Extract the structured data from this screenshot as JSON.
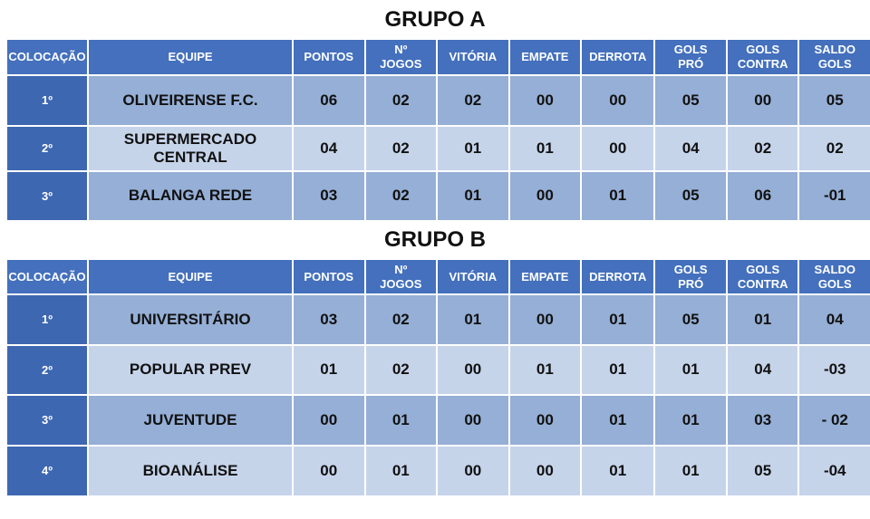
{
  "groups": [
    {
      "title": "GRUPO A",
      "header": [
        "COLOCAÇÃO",
        "EQUIPE",
        "PONTOS",
        "Nº JOGOS",
        "VITÓRIA",
        "EMPATE",
        "DERROTA",
        "GOLS PRÓ",
        "GOLS CONTRA",
        "SALDO GOLS"
      ],
      "rows": [
        [
          "1º",
          "OLIVEIRENSE F.C.",
          "06",
          "02",
          "02",
          "00",
          "00",
          "05",
          "00",
          "05"
        ],
        [
          "2º",
          "SUPERMERCADO CENTRAL",
          "04",
          "02",
          "01",
          "01",
          "00",
          "04",
          "02",
          "02"
        ],
        [
          "3º",
          "BALANGA REDE",
          "03",
          "02",
          "01",
          "00",
          "01",
          "05",
          "06",
          "-01"
        ]
      ]
    },
    {
      "title": "GRUPO B",
      "header": [
        "COLOCAÇÃO",
        "EQUIPE",
        "PONTOS",
        "Nº JOGOS",
        "VITÓRIA",
        "EMPATE",
        "DERROTA",
        "GOLS PRÓ",
        "GOLS CONTRA",
        "SALDO GOLS"
      ],
      "rows": [
        [
          "1º",
          "UNIVERSITÁRIO",
          "03",
          "02",
          "01",
          "00",
          "01",
          "05",
          "01",
          "04"
        ],
        [
          "2º",
          "POPULAR PREV",
          "01",
          "02",
          "00",
          "01",
          "01",
          "01",
          "04",
          "-03"
        ],
        [
          "3º",
          "JUVENTUDE",
          "00",
          "01",
          "00",
          "00",
          "01",
          "01",
          "03",
          "- 02"
        ],
        [
          "4º",
          "BIOANÁLISE",
          "00",
          "01",
          "00",
          "00",
          "01",
          "01",
          "05",
          "-04"
        ]
      ]
    }
  ]
}
